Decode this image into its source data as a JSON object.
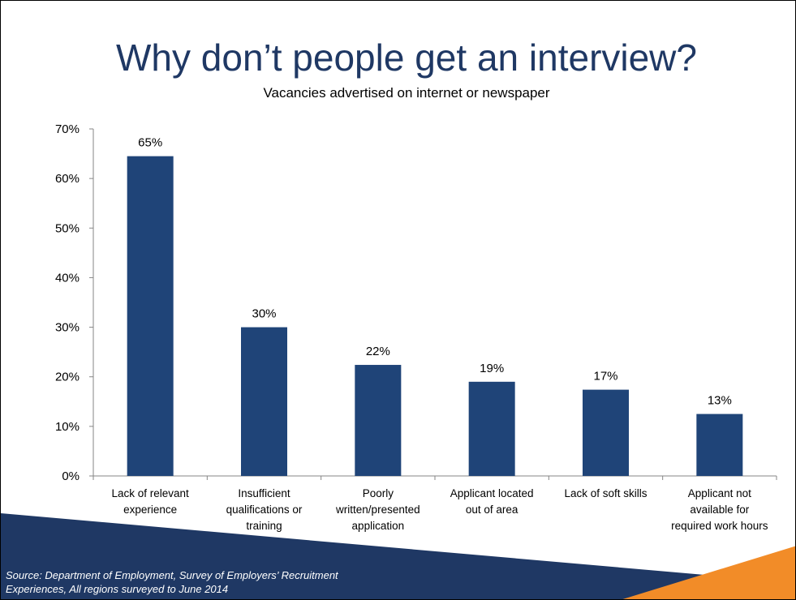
{
  "slide": {
    "title": "Why don’t people get an interview?",
    "subtitle": "Vacancies advertised on internet or newspaper",
    "source_line1": "Source: Department of Employment, Survey of Employers’ Recruitment",
    "source_line2": "Experiences, All regions surveyed to  June 2014"
  },
  "colors": {
    "bar": "#1f4478",
    "title": "#1f3864",
    "footer_band": "#1f3864",
    "accent": "#f28c28"
  },
  "chart_data": {
    "type": "bar",
    "categories": [
      [
        "Lack of relevant",
        "experience"
      ],
      [
        "Insufficient",
        "qualifications or",
        "training"
      ],
      [
        "Poorly",
        "written/presented",
        "application"
      ],
      [
        "Applicant located",
        "out of area"
      ],
      [
        "Lack of soft skills"
      ],
      [
        "Applicant not",
        "available for",
        "required work hours"
      ]
    ],
    "values": [
      64.5,
      30,
      22.4,
      19,
      17.4,
      12.5
    ],
    "data_labels": [
      "65%",
      "30%",
      "22%",
      "19%",
      "17%",
      "13%"
    ],
    "y_ticks": [
      0,
      10,
      20,
      30,
      40,
      50,
      60,
      70
    ],
    "y_tick_labels": [
      "0%",
      "10%",
      "20%",
      "30%",
      "40%",
      "50%",
      "60%",
      "70%"
    ],
    "ylim": [
      0,
      70
    ],
    "grid": false,
    "legend": "none"
  }
}
